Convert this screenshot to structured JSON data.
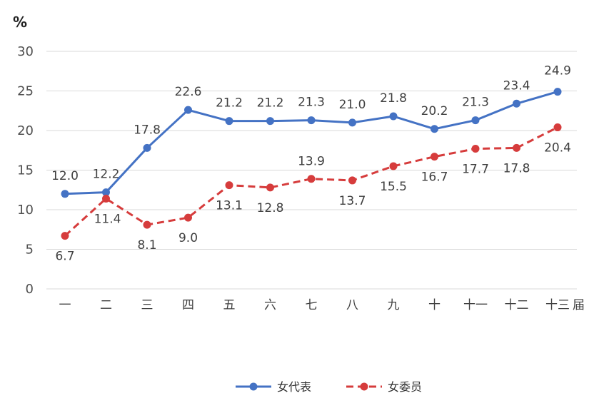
{
  "chart_data": {
    "type": "line",
    "ylabel": "%",
    "xlabel": "届",
    "ylim": [
      0,
      30
    ],
    "yticks": [
      0,
      5,
      10,
      15,
      20,
      25,
      30
    ],
    "grid": true,
    "legend_position": "bottom",
    "categories": [
      "一",
      "二",
      "三",
      "四",
      "五",
      "六",
      "七",
      "八",
      "九",
      "十",
      "十一",
      "十二",
      "十三"
    ],
    "series": [
      {
        "name": "女代表",
        "color": "#4472C4",
        "style": "solid",
        "values": [
          12.0,
          12.2,
          17.8,
          22.6,
          21.2,
          21.2,
          21.3,
          21.0,
          21.8,
          20.2,
          21.3,
          23.4,
          24.9
        ],
        "labels": [
          "12.0",
          "12.2",
          "17.8",
          "22.6",
          "21.2",
          "21.2",
          "21.3",
          "21.0",
          "21.8",
          "20.2",
          "21.3",
          "23.4",
          "24.9"
        ]
      },
      {
        "name": "女委员",
        "color": "#D63C3C",
        "style": "dashed",
        "values": [
          6.7,
          11.4,
          8.1,
          9.0,
          13.1,
          12.8,
          13.9,
          13.7,
          15.5,
          16.7,
          17.7,
          17.8,
          20.4
        ],
        "labels": [
          "6.7",
          "11.4",
          "8.1",
          "9.0",
          "13.1",
          "12.8",
          "13.9",
          "13.7",
          "15.5",
          "16.7",
          "17.7",
          "17.8",
          "20.4"
        ]
      }
    ]
  }
}
